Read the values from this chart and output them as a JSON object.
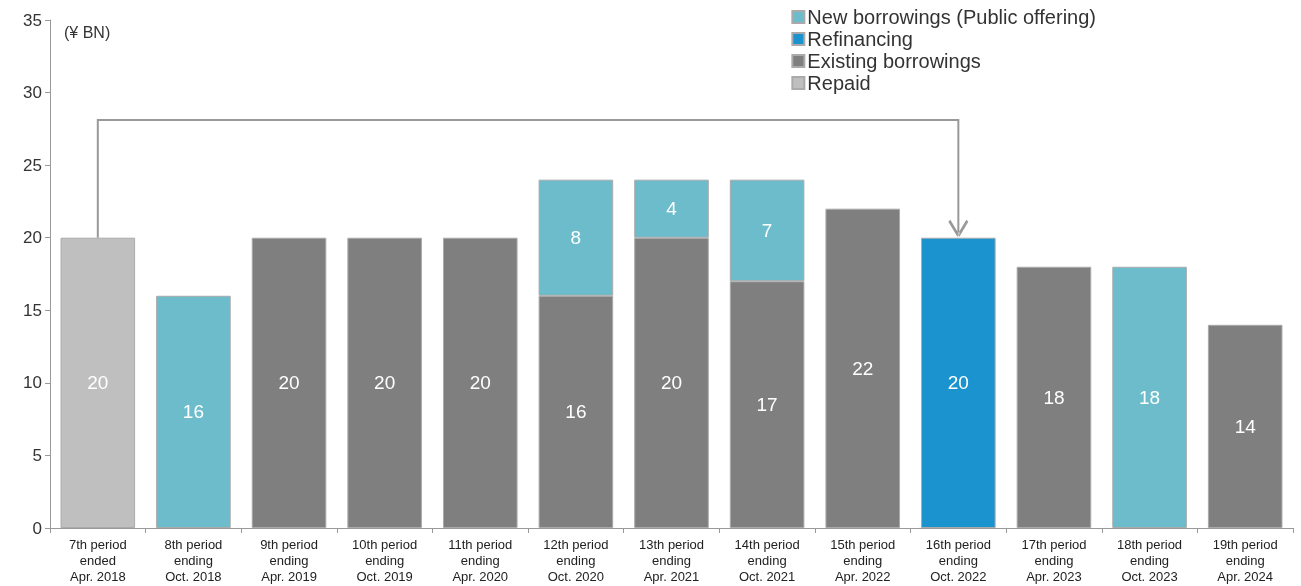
{
  "chart_data": {
    "type": "bar",
    "stacked": true,
    "ylabel": "(¥ BN)",
    "categories": [
      "7th period\nended\nApr. 2018",
      "8th period\nending\nOct. 2018",
      "9th period\nending\nApr. 2019",
      "10th period\nending\nOct. 2019",
      "11th period\nending\nApr. 2020",
      "12th period\nending\nOct. 2020",
      "13th period\nending\nApr. 2021",
      "14th period\nending\nOct. 2021",
      "15th period\nending\nApr. 2022",
      "16th period\nending\nOct. 2022",
      "17th period\nending\nApr. 2023",
      "18th period\nending\nOct. 2023",
      "19th period\nending\nApr. 2024"
    ],
    "series": [
      {
        "name": "Repaid",
        "color": "#bfbfbf",
        "values": [
          20,
          null,
          null,
          null,
          null,
          null,
          null,
          null,
          null,
          null,
          null,
          null,
          null
        ]
      },
      {
        "name": "Existing borrowings",
        "color": "#7f7f7f",
        "values": [
          null,
          null,
          20,
          20,
          20,
          16,
          20,
          17,
          22,
          null,
          18,
          null,
          14
        ]
      },
      {
        "name": "Refinancing",
        "color": "#1b93cf",
        "values": [
          null,
          null,
          null,
          null,
          null,
          null,
          null,
          null,
          null,
          20,
          null,
          null,
          null
        ]
      },
      {
        "name": "New borrowings (Public offering)",
        "color": "#6dbccb",
        "values": [
          null,
          16,
          null,
          null,
          null,
          8,
          4,
          7,
          null,
          null,
          null,
          18,
          null
        ]
      }
    ],
    "ylim": [
      0,
      35
    ],
    "yticks": [
      0,
      5,
      10,
      15,
      20,
      25,
      30,
      35
    ],
    "grid": false,
    "legend": "top right",
    "data_labels": true
  }
}
